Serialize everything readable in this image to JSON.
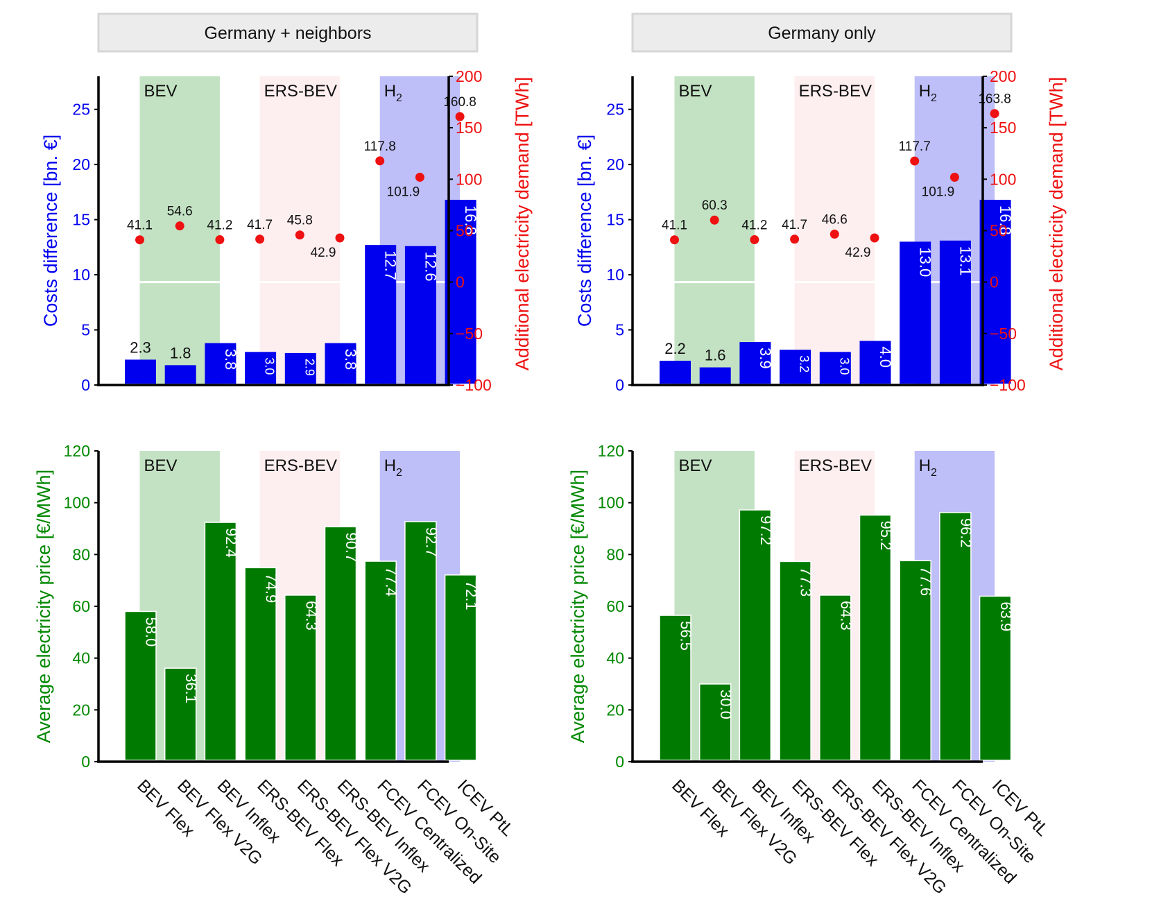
{
  "colors": {
    "cost_bar": "#0000ee",
    "cost_axis": "#0000ee",
    "demand_marker": "#ee1111",
    "demand_axis": "#ee1111",
    "price_bar": "#007a00",
    "price_axis": "#008800",
    "band_bev": "#c3e2c3",
    "band_ers": "#fdeef0",
    "band_h2": "#bebef8",
    "panel_title_bg": "#ececec"
  },
  "panel_titles": [
    "Germany + neighbors",
    "Germany only"
  ],
  "group_labels": {
    "bev": "BEV",
    "ers": "ERS-BEV",
    "h2": "H",
    "h2_sub": "2"
  },
  "chart_data": [
    {
      "type": "bar",
      "panel": "Germany + neighbors",
      "categories": [
        "BEV Flex",
        "BEV Flex V2G",
        "BEV Inflex",
        "ERS-BEV Flex",
        "ERS-BEV Flex V2G",
        "ERS-BEV Inflex",
        "FCEV Centralized",
        "FCEV On-Site",
        "ICEV PtL"
      ],
      "series": [
        {
          "axis": "left",
          "values": [
            2.3,
            1.8,
            3.8,
            3.0,
            2.9,
            3.8,
            12.7,
            12.6,
            16.8
          ],
          "labels": [
            "2.3",
            "1.8",
            "3.8",
            "3.0",
            "2.9",
            "3.8",
            "12.7",
            "12.6",
            "16.8"
          ]
        },
        {
          "axis": "right",
          "values": [
            41.1,
            54.6,
            41.2,
            41.7,
            45.8,
            42.9,
            117.8,
            101.9,
            160.8
          ],
          "labels": [
            "41.1",
            "54.6",
            "41.2",
            "41.7",
            "45.8",
            "42.9",
            "117.8",
            "101.9",
            "160.8"
          ]
        }
      ],
      "ylabel": "Costs difference [bn. €]",
      "ylabel_right": "Additional electricity demand [TWh]",
      "ylim": [
        0,
        28
      ],
      "ylim_right": [
        -100,
        200
      ],
      "yticks": [
        "0",
        "5",
        "10",
        "15",
        "20",
        "25"
      ],
      "yticks_right": [
        "−100",
        "−50",
        "0",
        "50",
        "100",
        "150",
        "200"
      ]
    },
    {
      "type": "bar",
      "panel": "Germany only",
      "categories": [
        "BEV Flex",
        "BEV Flex V2G",
        "BEV Inflex",
        "ERS-BEV Flex",
        "ERS-BEV Flex V2G",
        "ERS-BEV Inflex",
        "FCEV Centralized",
        "FCEV On-Site",
        "ICEV PtL"
      ],
      "series": [
        {
          "axis": "left",
          "values": [
            2.2,
            1.6,
            3.9,
            3.2,
            3.0,
            4.0,
            13.0,
            13.1,
            16.8
          ],
          "labels": [
            "2.2",
            "1.6",
            "3.9",
            "3.2",
            "3.0",
            "4.0",
            "13.0",
            "13.1",
            "16.8"
          ]
        },
        {
          "axis": "right",
          "values": [
            41.1,
            60.3,
            41.2,
            41.7,
            46.6,
            42.9,
            117.7,
            101.9,
            163.8
          ],
          "labels": [
            "41.1",
            "60.3",
            "41.2",
            "41.7",
            "46.6",
            "42.9",
            "117.7",
            "101.9",
            "163.8"
          ]
        }
      ],
      "ylabel": "Costs difference [bn. €]",
      "ylabel_right": "Additional electricity demand [TWh]",
      "ylim": [
        0,
        28
      ],
      "ylim_right": [
        -100,
        200
      ],
      "yticks": [
        "0",
        "5",
        "10",
        "15",
        "20",
        "25"
      ],
      "yticks_right": [
        "−100",
        "−50",
        "0",
        "50",
        "100",
        "150",
        "200"
      ]
    },
    {
      "type": "bar",
      "panel": "Germany + neighbors",
      "categories": [
        "BEV Flex",
        "BEV Flex V2G",
        "BEV Inflex",
        "ERS-BEV Flex",
        "ERS-BEV Flex V2G",
        "ERS-BEV Inflex",
        "FCEV Centralized",
        "FCEV On-Site",
        "ICEV PtL"
      ],
      "values": [
        58.0,
        36.1,
        92.4,
        74.9,
        64.3,
        90.7,
        77.4,
        92.7,
        72.1
      ],
      "labels": [
        "58.0",
        "36.1",
        "92.4",
        "74.9",
        "64.3",
        "90.7",
        "77.4",
        "92.7",
        "72.1"
      ],
      "ylabel": "Average electricity price [€/MWh]",
      "ylim": [
        0,
        120
      ],
      "yticks": [
        "0",
        "20",
        "40",
        "60",
        "80",
        "100",
        "120"
      ]
    },
    {
      "type": "bar",
      "panel": "Germany only",
      "categories": [
        "BEV Flex",
        "BEV Flex V2G",
        "BEV Inflex",
        "ERS-BEV Flex",
        "ERS-BEV Flex V2G",
        "ERS-BEV Inflex",
        "FCEV Centralized",
        "FCEV On-Site",
        "ICEV PtL"
      ],
      "values": [
        56.5,
        30.0,
        97.2,
        77.3,
        64.3,
        95.2,
        77.6,
        96.2,
        63.9
      ],
      "labels": [
        "56.5",
        "30.0",
        "97.2",
        "77.3",
        "64.3",
        "95.2",
        "77.6",
        "96.2",
        "63.9"
      ],
      "ylabel": "Average electricity price [€/MWh]",
      "ylim": [
        0,
        120
      ],
      "yticks": [
        "0",
        "20",
        "40",
        "60",
        "80",
        "100",
        "120"
      ]
    }
  ]
}
